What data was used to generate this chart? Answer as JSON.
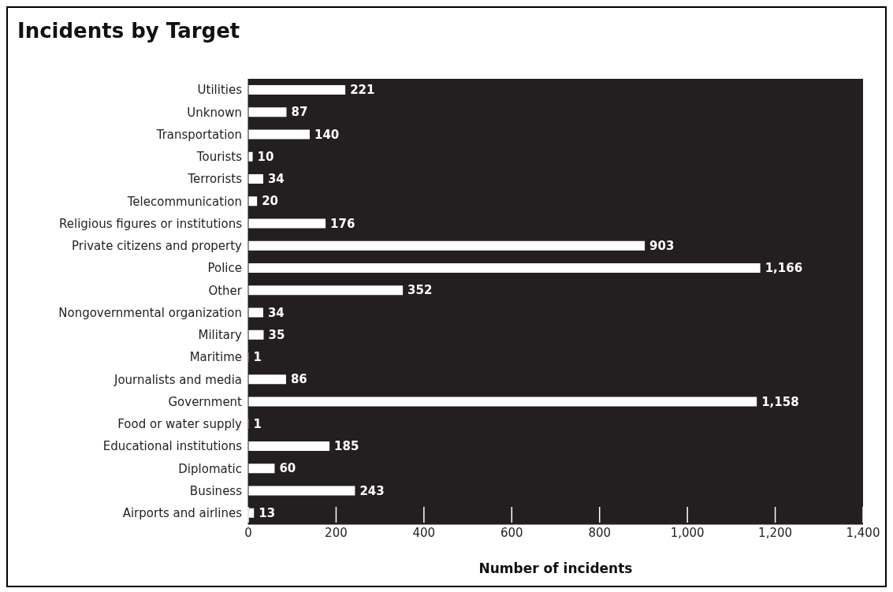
{
  "chart_data": {
    "type": "bar",
    "orientation": "horizontal",
    "title": "Incidents by Target",
    "xlabel": "Number of incidents",
    "categories": [
      "Utilities",
      "Unknown",
      "Transportation",
      "Tourists",
      "Terrorists",
      "Telecommunication",
      "Religious figures or institutions",
      "Private citizens and property",
      "Police",
      "Other",
      "Nongovernmental organization",
      "Military",
      "Maritime",
      "Journalists and media",
      "Government",
      "Food or water supply",
      "Educational institutions",
      "Diplomatic",
      "Business",
      "Airports and airlines"
    ],
    "values": [
      221,
      87,
      140,
      10,
      34,
      20,
      176,
      903,
      1166,
      352,
      34,
      35,
      1,
      86,
      1158,
      1,
      185,
      60,
      243,
      13
    ],
    "value_labels": [
      "221",
      "87",
      "140",
      "10",
      "34",
      "20",
      "176",
      "903",
      "1,166",
      "352",
      "34",
      "35",
      "1",
      "86",
      "1,158",
      "1",
      "185",
      "60",
      "243",
      "13"
    ],
    "color": "#ffffff",
    "xlim": [
      0,
      1400
    ],
    "xticks": [
      0,
      200,
      400,
      600,
      800,
      {
        "value": 1000,
        "label": "1,000"
      },
      {
        "value": 1200,
        "label": "1,200"
      },
      {
        "value": 1400,
        "label": "1,400"
      }
    ],
    "grid": false
  }
}
